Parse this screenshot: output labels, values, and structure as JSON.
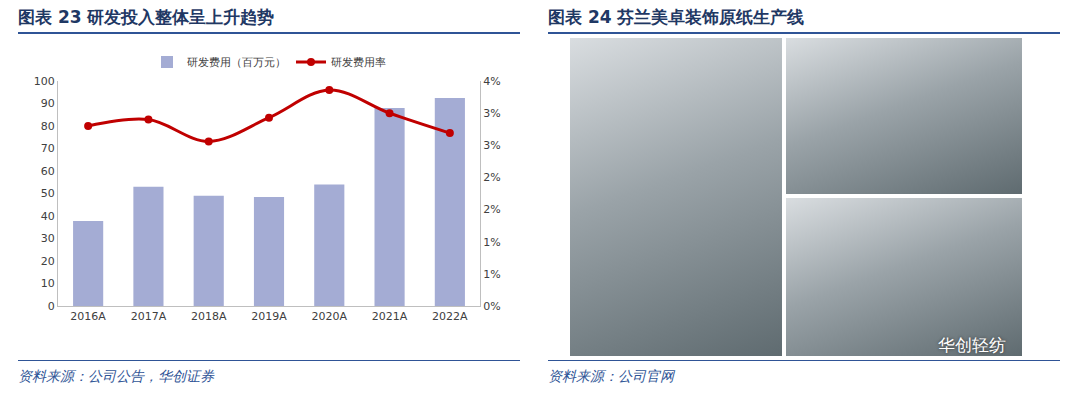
{
  "chart_data": {
    "type": "bar",
    "title": "图表 23 研发投入整体呈上升趋势",
    "annotations": [
      "资料来源：公司公告，华创证券"
    ],
    "categories": [
      "2016A",
      "2017A",
      "2018A",
      "2019A",
      "2020A",
      "2021A",
      "2022A"
    ],
    "series": [
      {
        "name": "研发费用（百万元）",
        "type": "bar",
        "color": "#a4acd4",
        "values": [
          37.8,
          53,
          49,
          48.5,
          54,
          88,
          92.5
        ]
      },
      {
        "name": "研发费用率",
        "type": "line",
        "axis": "y2",
        "color": "#c00000",
        "marker": "circle",
        "line_style": "smooth",
        "values": [
          2.8,
          2.9,
          2.56,
          2.93,
          3.36,
          3.0,
          2.69
        ]
      }
    ],
    "ylim": [
      0,
      100
    ],
    "yticks": [
      0,
      10,
      20,
      30,
      40,
      50,
      60,
      70,
      80,
      90,
      100
    ],
    "y2lim": [
      0,
      3.5
    ],
    "y2ticks": [
      {
        "value": 0,
        "label": "0%"
      },
      {
        "value": 0.5,
        "label": "1%"
      },
      {
        "value": 1,
        "label": "1%"
      },
      {
        "value": 1.5,
        "label": "2%"
      },
      {
        "value": 2,
        "label": "2%"
      },
      {
        "value": 2.5,
        "label": "3%"
      },
      {
        "value": 3,
        "label": "3%"
      },
      {
        "value": 3.5,
        "label": "4%"
      }
    ],
    "grid": false,
    "legend": "top"
  },
  "figure_24": {
    "title": "图表 24 芬兰美卓装饰原纸生产线",
    "source": "资料来源：公司官网",
    "watermark": "华创轻纺"
  }
}
